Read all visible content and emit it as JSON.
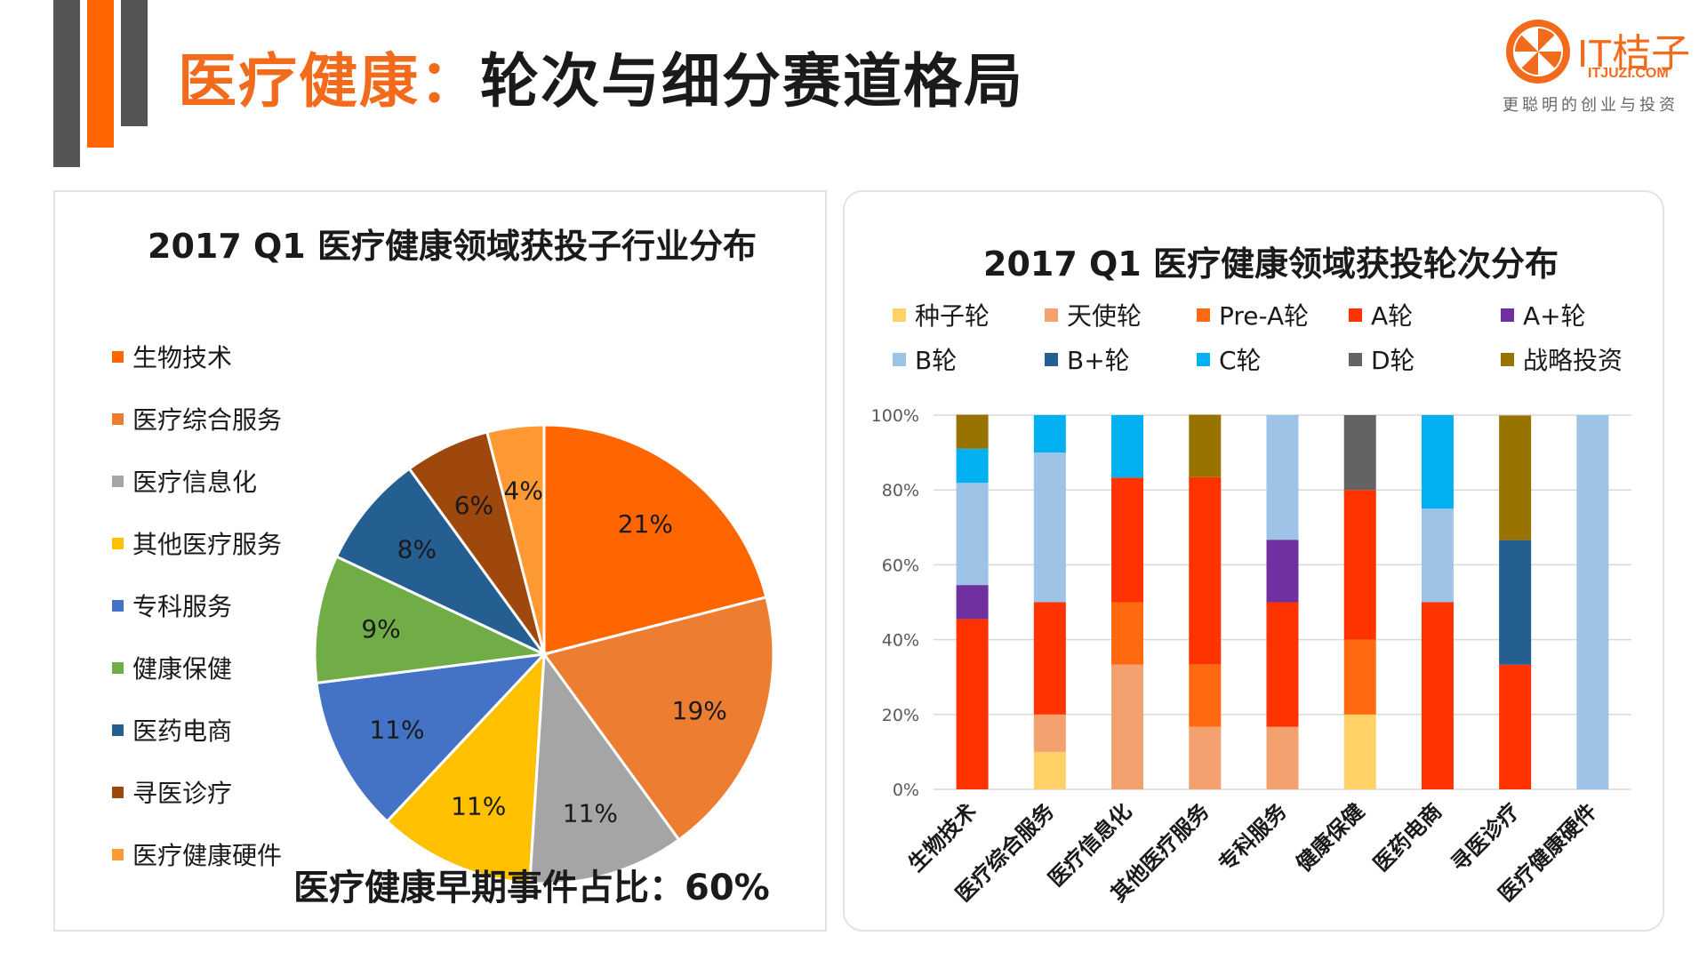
{
  "page": {
    "title_accent": "医疗健康：",
    "title_rest": "轮次与细分赛道格局",
    "brand_accent": "#f26b1d"
  },
  "logo": {
    "brand": "IT桔子",
    "site": "ITJUZI.COM",
    "slogan": "更聪明的创业与投资"
  },
  "left_panel": {
    "title": "2017 Q1 医疗健康领域获投子行业分布",
    "footnote": "医疗健康早期事件占比：60%"
  },
  "right_panel": {
    "title": "2017 Q1 医疗健康领域获投轮次分布"
  },
  "chart_data": [
    {
      "type": "pie",
      "title": "2017 Q1 医疗健康领域获投子行业分布",
      "legend_position": "left",
      "slices": [
        {
          "label": "生物技术",
          "value": 21,
          "display": "21%",
          "color": "#ff6600"
        },
        {
          "label": "医疗综合服务",
          "value": 19,
          "display": "19%",
          "color": "#ed7d31"
        },
        {
          "label": "医疗信息化",
          "value": 11,
          "display": "11%",
          "color": "#a5a5a5"
        },
        {
          "label": "其他医疗服务",
          "value": 11,
          "display": "11%",
          "color": "#ffc000"
        },
        {
          "label": "专科服务",
          "value": 11,
          "display": "11%",
          "color": "#4472c4"
        },
        {
          "label": "健康保健",
          "value": 9,
          "display": "9%",
          "color": "#70ad47"
        },
        {
          "label": "医药电商",
          "value": 8,
          "display": "8%",
          "color": "#255e91"
        },
        {
          "label": "寻医诊疗",
          "value": 6,
          "display": "6%",
          "color": "#9e480e"
        },
        {
          "label": "医疗健康硬件",
          "value": 4,
          "display": "4%",
          "color": "#ff9933"
        }
      ]
    },
    {
      "type": "bar",
      "stacked": true,
      "percent": true,
      "title": "2017 Q1 医疗健康领域获投轮次分布",
      "legend_position": "top",
      "categories": [
        "生物技术",
        "医疗综合服务",
        "医疗信息化",
        "其他医疗服务",
        "专科服务",
        "健康保健",
        "医药电商",
        "寻医诊疗",
        "医疗健康硬件"
      ],
      "y_ticks": [
        "0%",
        "20%",
        "40%",
        "60%",
        "80%",
        "100%"
      ],
      "ylim": [
        0,
        100
      ],
      "series": [
        {
          "name": "种子轮",
          "color": "#ffd166",
          "values": [
            0,
            10,
            0,
            0,
            0,
            20,
            0,
            0,
            0
          ]
        },
        {
          "name": "天使轮",
          "color": "#f4a170",
          "values": [
            0,
            10,
            33.3,
            16.7,
            16.7,
            0,
            0,
            0,
            0
          ]
        },
        {
          "name": "Pre-A轮",
          "color": "#ff6a10",
          "values": [
            0,
            0,
            16.7,
            16.7,
            0,
            20,
            0,
            0,
            0
          ]
        },
        {
          "name": "A轮",
          "color": "#ff3300",
          "values": [
            45.5,
            30,
            33.3,
            50,
            33.3,
            40,
            50,
            33.3,
            0
          ]
        },
        {
          "name": "A+轮",
          "color": "#7030a0",
          "values": [
            9.1,
            0,
            0,
            0,
            16.7,
            0,
            0,
            0,
            0
          ]
        },
        {
          "name": "B轮",
          "color": "#9dc3e6",
          "values": [
            27.3,
            40,
            0,
            0,
            33.3,
            0,
            25,
            0,
            100
          ]
        },
        {
          "name": "B+轮",
          "color": "#255e91",
          "values": [
            0,
            0,
            0,
            0,
            0,
            0,
            0,
            33.3,
            0
          ]
        },
        {
          "name": "C轮",
          "color": "#00b0f0",
          "values": [
            9.1,
            10,
            16.7,
            0,
            0,
            0,
            25,
            0,
            0
          ]
        },
        {
          "name": "D轮",
          "color": "#636363",
          "values": [
            0,
            0,
            0,
            0,
            0,
            20,
            0,
            0,
            0
          ]
        },
        {
          "name": "战略投资",
          "color": "#997300",
          "values": [
            9.1,
            0,
            0,
            16.7,
            0,
            0,
            0,
            33.3,
            0
          ]
        }
      ]
    }
  ]
}
